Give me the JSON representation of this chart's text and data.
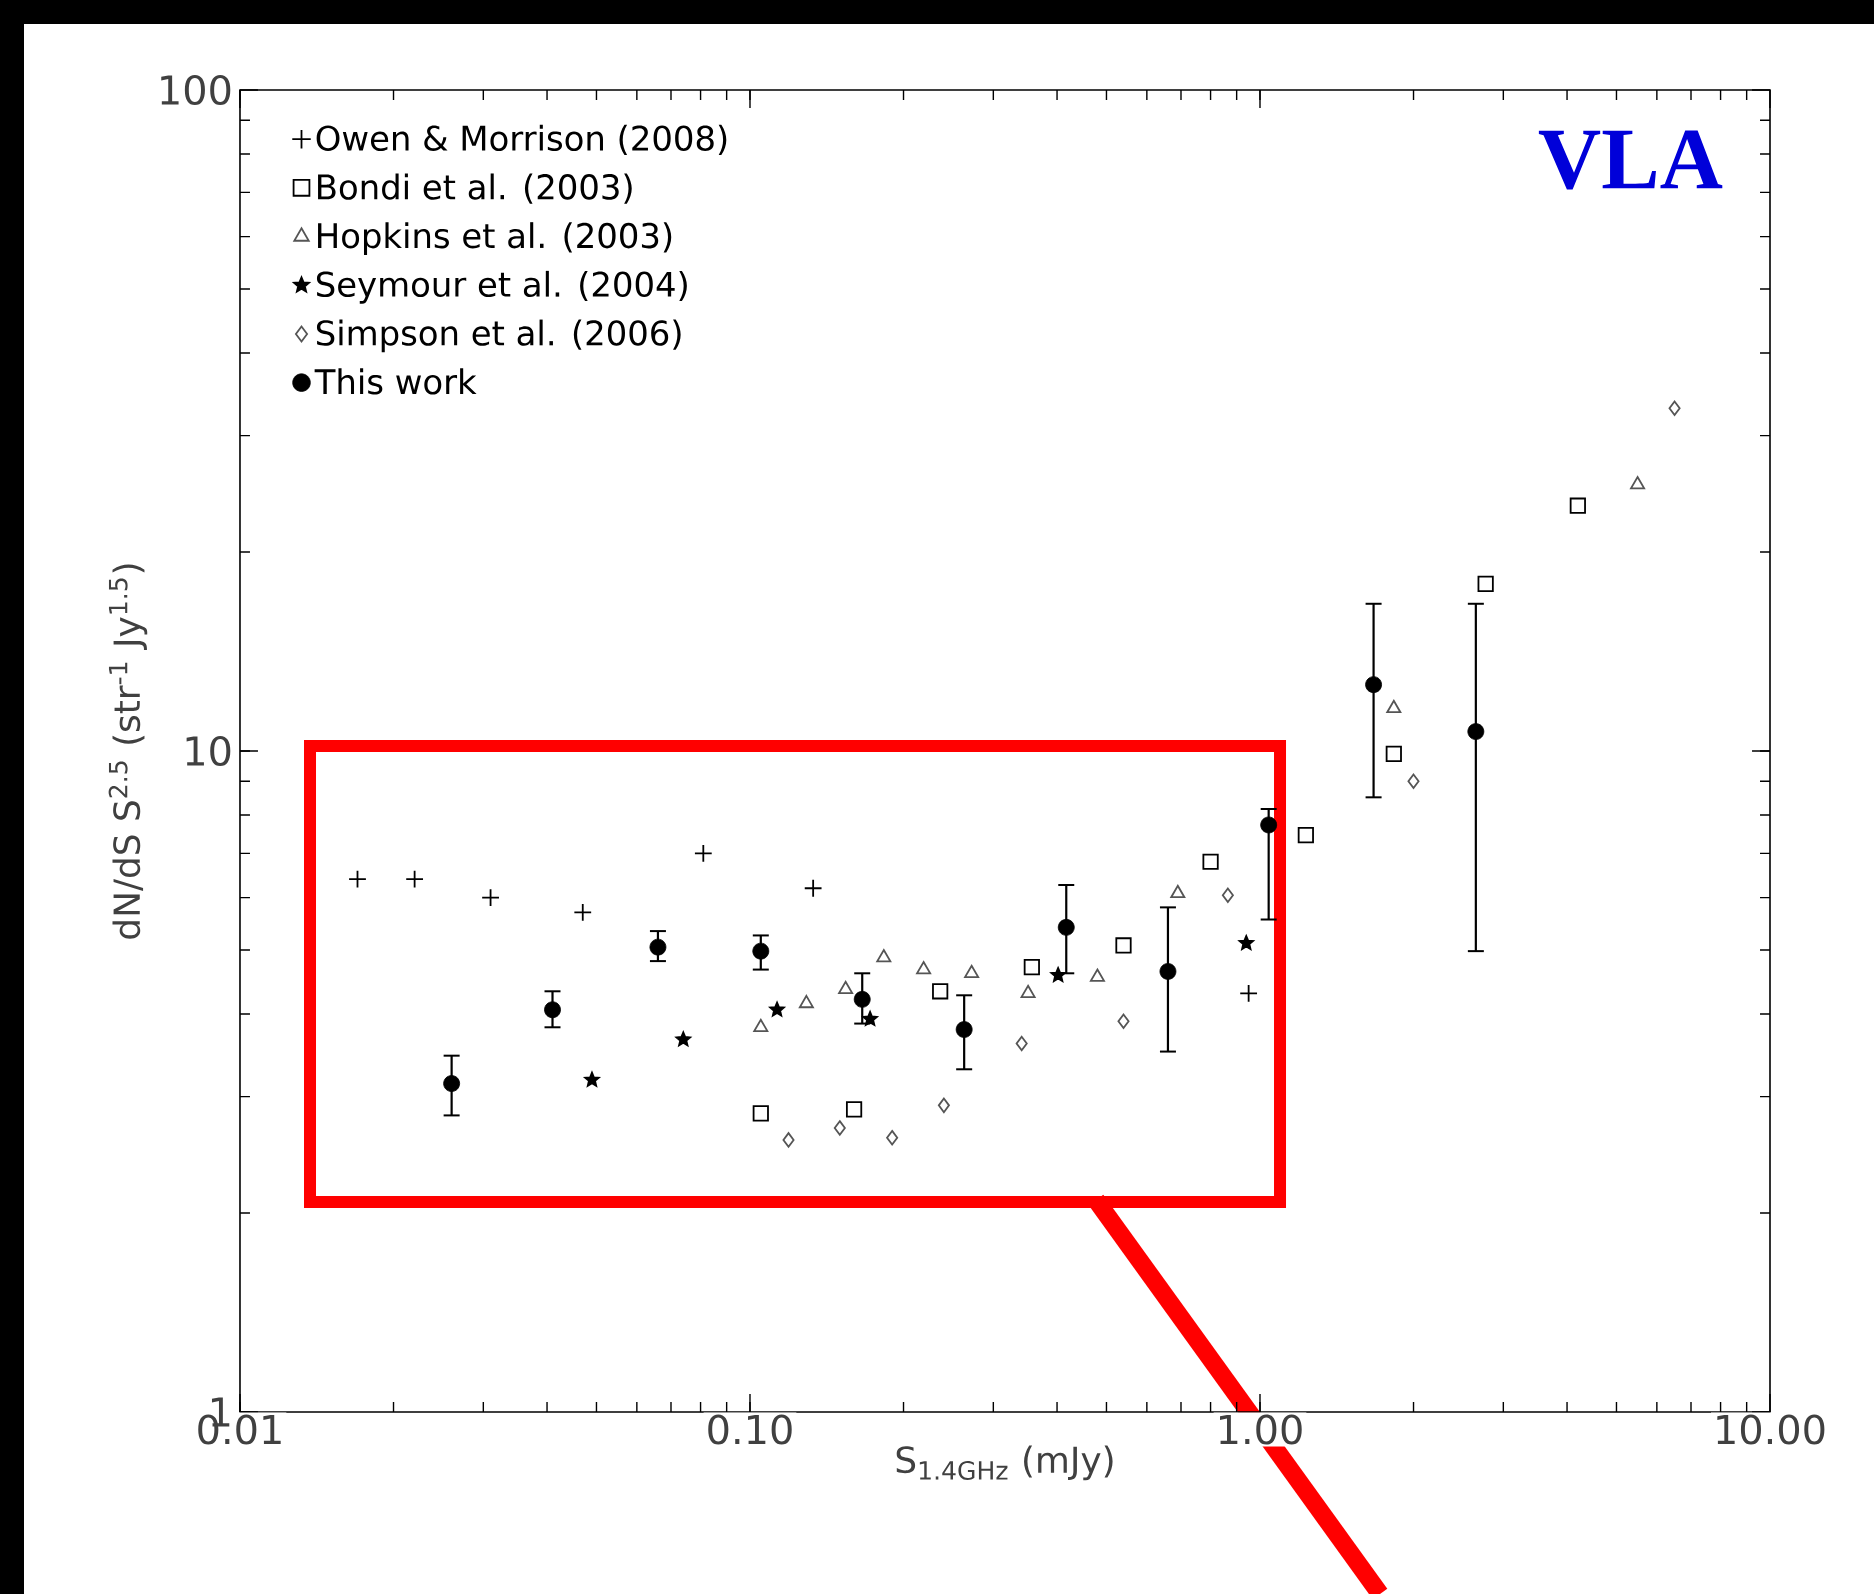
{
  "chart_data": {
    "type": "scatter",
    "xlabel": "S$_{1.4GHz}$ (mJy)",
    "ylabel": "dN/dS  S$^{2.5}$ (str$^{-1}$ Jy$^{1.5}$)",
    "annotations": [
      "VLA"
    ],
    "log": "xy",
    "grid": false,
    "legend": "top left",
    "xlim": [
      0.01,
      10
    ],
    "ylim": [
      1,
      100
    ],
    "xticks": [
      {
        "value": 0.01,
        "label": "0.01"
      },
      {
        "value": 0.1,
        "label": "0.10"
      },
      {
        "value": 1,
        "label": "1.00"
      },
      {
        "value": 10,
        "label": "10.00"
      }
    ],
    "yticks": [
      1,
      10,
      100
    ],
    "series": [
      {
        "name": "Owen & Morrison (2008)",
        "color": "#000000",
        "marker": "cross",
        "x": [
          0.017,
          0.022,
          0.031,
          0.047,
          0.081,
          0.133,
          0.95
        ],
        "values": [
          6.4,
          6.4,
          6.0,
          5.7,
          7.0,
          6.2,
          4.3
        ]
      },
      {
        "name": "Bondi et al. (2003)",
        "color": "#000000",
        "marker": "square",
        "x": [
          0.105,
          0.16,
          0.236,
          0.357,
          0.54,
          0.8,
          1.23,
          1.83,
          2.77,
          4.2
        ],
        "values": [
          2.83,
          2.87,
          4.33,
          4.71,
          5.08,
          6.8,
          7.46,
          9.9,
          17.9,
          23.5
        ]
      },
      {
        "name": "Hopkins et al. (2003)",
        "color": "#555555",
        "marker": "triangle",
        "x": [
          0.105,
          0.129,
          0.154,
          0.183,
          0.219,
          0.272,
          0.351,
          0.48,
          0.69,
          1.83,
          5.5
        ],
        "values": [
          3.82,
          4.15,
          4.36,
          4.87,
          4.67,
          4.61,
          4.3,
          4.55,
          6.09,
          11.6,
          25.3
        ]
      },
      {
        "name": "Seymour et al. (2004)",
        "color": "#000000",
        "marker": "star",
        "x": [
          0.049,
          0.074,
          0.113,
          0.172,
          0.402,
          0.94
        ],
        "values": [
          3.18,
          3.66,
          4.06,
          3.93,
          4.58,
          5.12
        ]
      },
      {
        "name": "Simpson et al. (2006)",
        "color": "#555555",
        "marker": "diamond",
        "x": [
          0.119,
          0.15,
          0.19,
          0.24,
          0.341,
          0.54,
          0.865,
          2.0,
          6.5
        ],
        "values": [
          2.58,
          2.69,
          2.6,
          2.91,
          3.61,
          3.9,
          6.05,
          9.0,
          33.0
        ]
      },
      {
        "name": "This work",
        "color": "#000000",
        "marker": "circle",
        "x": [
          0.026,
          0.041,
          0.066,
          0.105,
          0.166,
          0.263,
          0.417,
          0.66,
          1.04,
          1.67,
          2.65
        ],
        "values": [
          3.14,
          4.06,
          5.05,
          4.98,
          4.21,
          3.79,
          5.41,
          4.64,
          7.73,
          12.6,
          10.7
        ],
        "errors": [
          [
            2.81,
            3.46
          ],
          [
            3.82,
            4.33
          ],
          [
            4.81,
            5.34
          ],
          [
            4.67,
            5.26
          ],
          [
            3.87,
            4.61
          ],
          [
            3.3,
            4.27
          ],
          [
            4.61,
            6.27
          ],
          [
            3.51,
            5.8
          ],
          [
            5.56,
            8.17
          ],
          [
            8.51,
            16.7
          ],
          [
            4.98,
            16.7
          ]
        ]
      }
    ]
  }
}
